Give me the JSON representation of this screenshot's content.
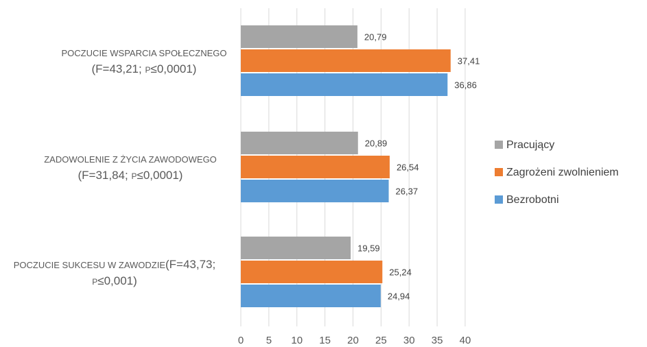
{
  "chart_data": {
    "type": "bar",
    "orientation": "horizontal",
    "title": "",
    "xlabel": "",
    "ylabel": "",
    "xlim": [
      0,
      40
    ],
    "x_ticks": [
      "0",
      "5",
      "10",
      "15",
      "20",
      "25",
      "30",
      "35",
      "40"
    ],
    "grid": "vertical",
    "legend_position": "right",
    "categories": [
      {
        "small": "POCZUCIE WSPARCIA SPOŁECZNEGO",
        "stat_a": "(F=43,21; ",
        "stat_p": "P",
        "stat_b": "≤0,0001)"
      },
      {
        "small": "ZADOWOLENIE Z ŻYCIA ZAWODOWEGO",
        "stat_a": "(F=31,84; ",
        "stat_p": "P",
        "stat_b": "≤0,0001)"
      },
      {
        "small": "POCZUCIE SUKCESU W ZAWODZIE",
        "stat_a": "(F=43,73;",
        "stat_p": "P",
        "stat_b": "≤0,001)"
      }
    ],
    "series": [
      {
        "name": "Pracujący",
        "color": "#a5a5a5",
        "values": [
          20.79,
          20.89,
          19.59
        ],
        "labels": [
          "20,79",
          "20,89",
          "19,59"
        ]
      },
      {
        "name": "Zagrożeni zwolnieniem",
        "color": "#ed7d31",
        "values": [
          37.41,
          26.54,
          25.24
        ],
        "labels": [
          "37,41",
          "26,54",
          "25,24"
        ]
      },
      {
        "name": "Bezrobotni",
        "color": "#5b9bd5",
        "values": [
          36.86,
          26.37,
          24.94
        ],
        "labels": [
          "36,86",
          "26,37",
          "24,94"
        ]
      }
    ]
  }
}
